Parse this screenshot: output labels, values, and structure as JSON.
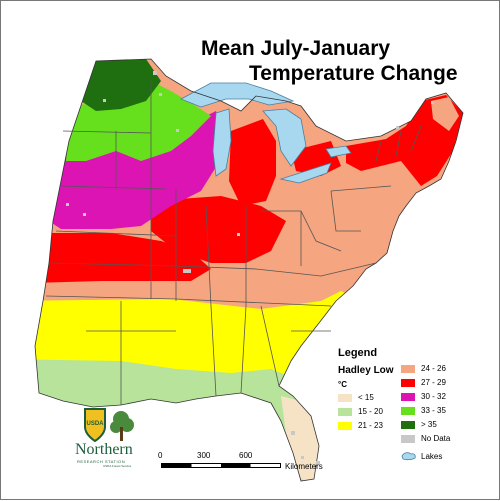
{
  "title": {
    "line1": "Mean July-January",
    "line2": "Temperature Change"
  },
  "legend": {
    "heading": "Legend",
    "model": "Hadley Low",
    "unit": "°C",
    "items": [
      {
        "label": "< 15",
        "color": "#f6e3c6"
      },
      {
        "label": "15 - 20",
        "color": "#b7e39a"
      },
      {
        "label": "21 - 23",
        "color": "#ffff00"
      },
      {
        "label": "24 - 26",
        "color": "#f5a57f"
      },
      {
        "label": "27 - 29",
        "color": "#ff0000"
      },
      {
        "label": "30 - 32",
        "color": "#dc14b4"
      },
      {
        "label": "33 - 35",
        "color": "#66e01c"
      },
      {
        "label": "> 35",
        "color": "#1f6e0f"
      },
      {
        "label": "No Data",
        "color": "#c8c8c8"
      },
      {
        "label": "Lakes",
        "color": "#a8d8f0"
      }
    ]
  },
  "scale": {
    "ticks": [
      "0",
      "300",
      "600"
    ],
    "unit": "Kilometers"
  },
  "logo": {
    "shield_text": "USDA",
    "org_name": "Northern",
    "org_sub": "RESEARCH STATION",
    "org_sub2": "USDA Forest Service"
  },
  "colors": {
    "lt15": "#f6e3c6",
    "c15_20": "#b7e39a",
    "c21_23": "#ffff00",
    "c24_26": "#f5a57f",
    "c27_29": "#ff0000",
    "c30_32": "#dc14b4",
    "c33_35": "#66e01c",
    "gt35": "#1f6e0f",
    "nodata": "#c8c8c8",
    "lakes": "#a8d8f0",
    "border": "#555555",
    "brand_green": "#1c5e3a"
  }
}
